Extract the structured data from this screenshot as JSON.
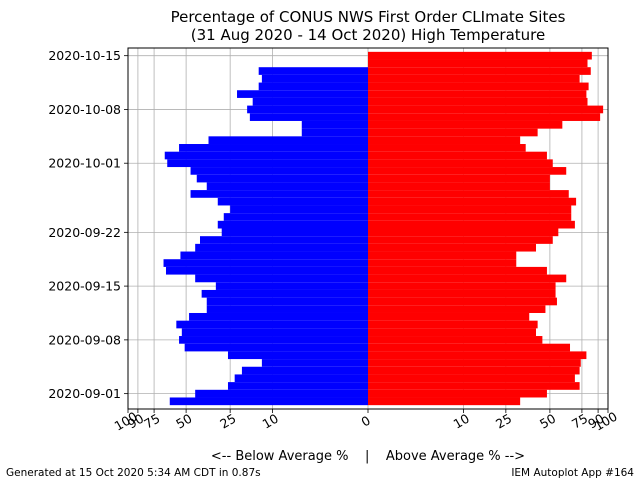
{
  "chart_data": {
    "type": "bar",
    "orientation": "horizontal-diverging",
    "title": "Percentage of CONUS NWS First Order CLImate Sites",
    "subtitle": "(31 Aug 2020 - 14 Oct 2020) High Temperature",
    "xlabel": "<-- Below Average %    |    Above Average % -->",
    "ylabel": "",
    "grid": true,
    "xlim": [
      -100,
      100
    ],
    "x_ticks": [
      -100,
      -90,
      -75,
      -50,
      -25,
      -10,
      0,
      10,
      25,
      50,
      75,
      90,
      100
    ],
    "x_tick_labels": [
      "100",
      "90",
      "75",
      "50",
      "25",
      "10",
      "0",
      "10",
      "25",
      "50",
      "75",
      "90",
      "100"
    ],
    "y_tick_labels": [
      {
        "date": "2020-09-01",
        "label": "2020-09-01"
      },
      {
        "date": "2020-09-08",
        "label": "2020-09-08"
      },
      {
        "date": "2020-09-15",
        "label": "2020-09-15"
      },
      {
        "date": "2020-09-22",
        "label": "2020-09-22"
      },
      {
        "date": "2020-10-01",
        "label": "2020-10-01"
      },
      {
        "date": "2020-10-08",
        "label": "2020-10-08"
      },
      {
        "date": "2020-10-15",
        "label": "2020-10-15"
      }
    ],
    "ylim": [
      "2020-08-30",
      "2020-10-16"
    ],
    "series": [
      {
        "color": "#0000ff",
        "points": [
          {
            "date": "2020-08-31",
            "value": -62
          },
          {
            "date": "2020-09-01",
            "value": -44
          },
          {
            "date": "2020-09-02",
            "value": -26
          },
          {
            "date": "2020-09-03",
            "value": -23
          },
          {
            "date": "2020-09-04",
            "value": -20
          },
          {
            "date": "2020-09-05",
            "value": -13
          },
          {
            "date": "2020-09-06",
            "value": -26
          },
          {
            "date": "2020-09-07",
            "value": -51
          },
          {
            "date": "2020-09-08",
            "value": -55
          },
          {
            "date": "2020-09-09",
            "value": -53
          },
          {
            "date": "2020-09-10",
            "value": -57
          },
          {
            "date": "2020-09-11",
            "value": -48
          },
          {
            "date": "2020-09-12",
            "value": -37
          },
          {
            "date": "2020-09-13",
            "value": -37
          },
          {
            "date": "2020-09-14",
            "value": -40
          },
          {
            "date": "2020-09-15",
            "value": -32
          },
          {
            "date": "2020-09-16",
            "value": -44
          },
          {
            "date": "2020-09-17",
            "value": -65
          },
          {
            "date": "2020-09-18",
            "value": -67
          },
          {
            "date": "2020-09-19",
            "value": -54
          },
          {
            "date": "2020-09-20",
            "value": -44
          },
          {
            "date": "2020-09-21",
            "value": -41
          },
          {
            "date": "2020-09-22",
            "value": -29
          },
          {
            "date": "2020-09-23",
            "value": -31
          },
          {
            "date": "2020-09-24",
            "value": -28
          },
          {
            "date": "2020-09-25",
            "value": -25
          },
          {
            "date": "2020-09-26",
            "value": -31
          },
          {
            "date": "2020-09-27",
            "value": -47
          },
          {
            "date": "2020-09-28",
            "value": -37
          },
          {
            "date": "2020-09-29",
            "value": -43
          },
          {
            "date": "2020-09-30",
            "value": -47
          },
          {
            "date": "2020-10-01",
            "value": -64
          },
          {
            "date": "2020-10-02",
            "value": -66
          },
          {
            "date": "2020-10-03",
            "value": -55
          },
          {
            "date": "2020-10-04",
            "value": -36
          },
          {
            "date": "2020-10-05",
            "value": -4
          },
          {
            "date": "2020-10-06",
            "value": -4
          },
          {
            "date": "2020-10-07",
            "value": -17
          },
          {
            "date": "2020-10-08",
            "value": -18
          },
          {
            "date": "2020-10-09",
            "value": -16
          },
          {
            "date": "2020-10-10",
            "value": -22
          },
          {
            "date": "2020-10-11",
            "value": -14
          },
          {
            "date": "2020-10-12",
            "value": -13
          },
          {
            "date": "2020-10-13",
            "value": -14
          }
        ]
      },
      {
        "color": "#ff0000",
        "points": [
          {
            "date": "2020-08-31",
            "value": 32
          },
          {
            "date": "2020-09-01",
            "value": 48
          },
          {
            "date": "2020-09-02",
            "value": 73
          },
          {
            "date": "2020-09-03",
            "value": 69
          },
          {
            "date": "2020-09-04",
            "value": 73
          },
          {
            "date": "2020-09-05",
            "value": 74
          },
          {
            "date": "2020-09-06",
            "value": 79
          },
          {
            "date": "2020-09-07",
            "value": 65
          },
          {
            "date": "2020-09-08",
            "value": 45
          },
          {
            "date": "2020-09-09",
            "value": 41
          },
          {
            "date": "2020-09-10",
            "value": 42
          },
          {
            "date": "2020-09-11",
            "value": 37
          },
          {
            "date": "2020-09-12",
            "value": 47
          },
          {
            "date": "2020-09-13",
            "value": 55
          },
          {
            "date": "2020-09-14",
            "value": 54
          },
          {
            "date": "2020-09-15",
            "value": 54
          },
          {
            "date": "2020-09-16",
            "value": 62
          },
          {
            "date": "2020-09-17",
            "value": 48
          },
          {
            "date": "2020-09-18",
            "value": 30
          },
          {
            "date": "2020-09-19",
            "value": 30
          },
          {
            "date": "2020-09-20",
            "value": 41
          },
          {
            "date": "2020-09-21",
            "value": 52
          },
          {
            "date": "2020-09-22",
            "value": 56
          },
          {
            "date": "2020-09-23",
            "value": 69
          },
          {
            "date": "2020-09-24",
            "value": 66
          },
          {
            "date": "2020-09-25",
            "value": 66
          },
          {
            "date": "2020-09-26",
            "value": 70
          },
          {
            "date": "2020-09-27",
            "value": 64
          },
          {
            "date": "2020-09-28",
            "value": 50
          },
          {
            "date": "2020-09-29",
            "value": 50
          },
          {
            "date": "2020-09-30",
            "value": 62
          },
          {
            "date": "2020-10-01",
            "value": 52
          },
          {
            "date": "2020-10-02",
            "value": 48
          },
          {
            "date": "2020-10-03",
            "value": 35
          },
          {
            "date": "2020-10-04",
            "value": 32
          },
          {
            "date": "2020-10-05",
            "value": 42
          },
          {
            "date": "2020-10-06",
            "value": 59
          },
          {
            "date": "2020-10-07",
            "value": 92
          },
          {
            "date": "2020-10-08",
            "value": 95
          },
          {
            "date": "2020-10-09",
            "value": 80
          },
          {
            "date": "2020-10-10",
            "value": 79
          },
          {
            "date": "2020-10-11",
            "value": 81
          },
          {
            "date": "2020-10-12",
            "value": 73
          },
          {
            "date": "2020-10-13",
            "value": 83
          },
          {
            "date": "2020-10-14",
            "value": 80
          },
          {
            "date": "2020-10-15",
            "value": 84
          }
        ]
      }
    ]
  },
  "footer": {
    "left": "Generated at 15 Oct 2020 5:34 AM CDT in 0.87s",
    "right": "IEM Autoplot App #164"
  }
}
